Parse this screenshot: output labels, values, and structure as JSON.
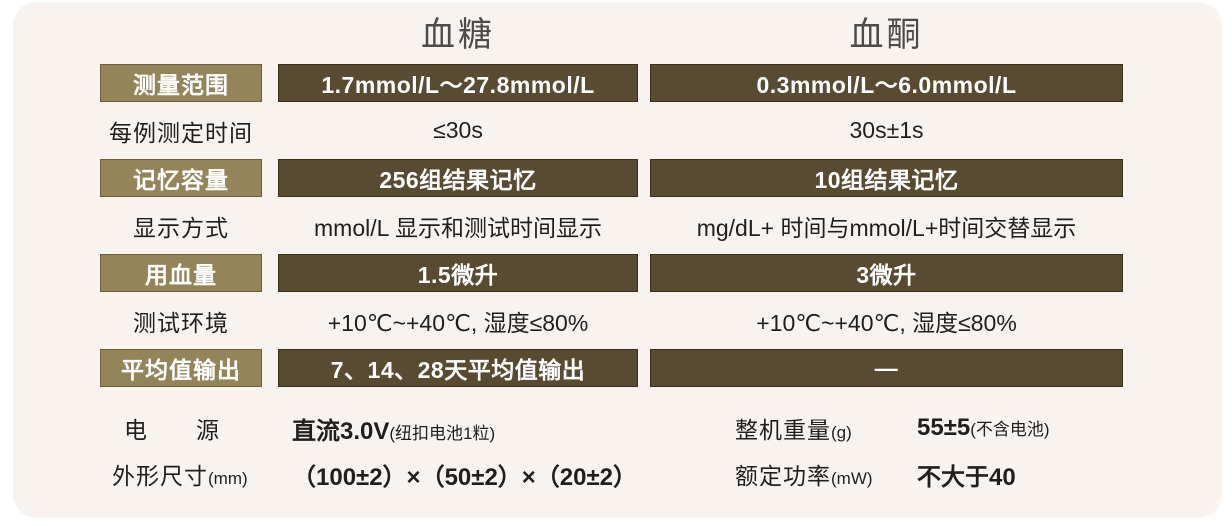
{
  "colors": {
    "card_bg": "#f8f3ee",
    "label_bar": "#94845a",
    "value_bar": "#594b31",
    "bar_text": "#ffffff",
    "header_text": "#4c4c4c",
    "body_text": "#1f1f1f"
  },
  "table": {
    "headers": {
      "glucose": "血糖",
      "ketone": "血酮"
    },
    "rows": [
      {
        "type": "bar",
        "label": "测量范围",
        "glucose": "1.7mmol/L～27.8mmol/L",
        "ketone": "0.3mmol/L～6.0mmol/L"
      },
      {
        "type": "text",
        "label": "每例测定时间",
        "glucose": "≤30s",
        "ketone": "30s±1s"
      },
      {
        "type": "bar",
        "label": "记忆容量",
        "glucose": "256组结果记忆",
        "ketone": "10组结果记忆"
      },
      {
        "type": "text",
        "label": "显示方式",
        "glucose": "mmol/L 显示和测试时间显示",
        "ketone": "mg/dL+ 时间与mmol/L+时间交替显示"
      },
      {
        "type": "bar",
        "label": "用血量",
        "glucose": "1.5微升",
        "ketone": "3微升"
      },
      {
        "type": "text",
        "label": "测试环境",
        "glucose": "+10℃~+40℃, 湿度≤80%",
        "ketone": "+10℃~+40℃, 湿度≤80%"
      },
      {
        "type": "bar",
        "label": "平均值输出",
        "glucose": "7、14、28天平均值输出",
        "ketone": "—"
      }
    ]
  },
  "footer": {
    "power_label_a": "电",
    "power_label_b": "源",
    "power_value": "直流3.0V",
    "power_note": "(纽扣电池1粒)",
    "size_label": "外形尺寸",
    "size_unit": "(mm)",
    "size_value": "（100±2）×（50±2）×（20±2）",
    "weight_label": "整机重量",
    "weight_unit": "(g)",
    "weight_value": "55±5",
    "weight_note": "(不含电池)",
    "rated_label": "额定功率",
    "rated_unit": "(mW)",
    "rated_value": "不大于40"
  }
}
